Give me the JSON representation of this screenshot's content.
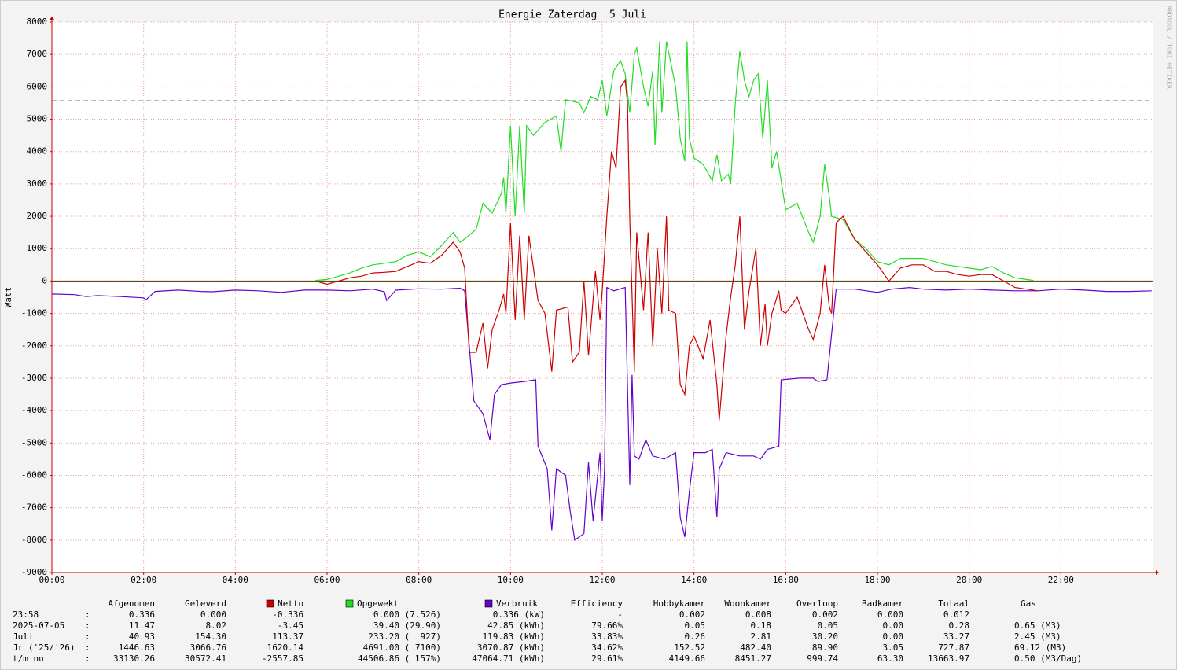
{
  "chart_data": {
    "type": "line",
    "title": "Energie Zaterdag  5 Juli",
    "y_label": "Watt",
    "watermark": "RRDTOOL / TOBI OETIKER",
    "xlim": [
      0,
      24
    ],
    "xticks": [
      {
        "value": 0,
        "label": "00:00"
      },
      {
        "value": 2,
        "label": "02:00"
      },
      {
        "value": 4,
        "label": "04:00"
      },
      {
        "value": 6,
        "label": "06:00"
      },
      {
        "value": 8,
        "label": "08:00"
      },
      {
        "value": 10,
        "label": "10:00"
      },
      {
        "value": 12,
        "label": "12:00"
      },
      {
        "value": 14,
        "label": "14:00"
      },
      {
        "value": 16,
        "label": "16:00"
      },
      {
        "value": 18,
        "label": "18:00"
      },
      {
        "value": 20,
        "label": "20:00"
      },
      {
        "value": 22,
        "label": "22:00"
      }
    ],
    "ylim": [
      -9000,
      8000
    ],
    "yticks": [
      -9000,
      -8000,
      -7000,
      -6000,
      -5000,
      -4000,
      -3000,
      -2000,
      -1000,
      0,
      1000,
      2000,
      3000,
      4000,
      5000,
      6000,
      7000,
      8000
    ],
    "grid": true,
    "reference_line": 5570,
    "series": [
      {
        "name": "Netto",
        "color": "#cc0000",
        "x": [
          5.75,
          6.0,
          6.5,
          6.75,
          7.0,
          7.25,
          7.5,
          7.75,
          8.0,
          8.25,
          8.5,
          8.75,
          8.9,
          9.0,
          9.1,
          9.25,
          9.4,
          9.5,
          9.6,
          9.75,
          9.85,
          9.9,
          10.0,
          10.1,
          10.2,
          10.3,
          10.4,
          10.6,
          10.75,
          10.9,
          11.0,
          11.25,
          11.35,
          11.5,
          11.6,
          11.7,
          11.85,
          11.95,
          12.0,
          12.1,
          12.2,
          12.3,
          12.4,
          12.5,
          12.55,
          12.6,
          12.7,
          12.75,
          12.9,
          13.0,
          13.1,
          13.2,
          13.3,
          13.4,
          13.45,
          13.6,
          13.7,
          13.8,
          13.9,
          14.0,
          14.2,
          14.35,
          14.5,
          14.55,
          14.7,
          14.8,
          14.9,
          15.0,
          15.1,
          15.2,
          15.35,
          15.45,
          15.55,
          15.6,
          15.7,
          15.85,
          15.9,
          16.0,
          16.25,
          16.5,
          16.6,
          16.75,
          16.85,
          16.95,
          17.0,
          17.1,
          17.25,
          17.5,
          17.75,
          18.0,
          18.25,
          18.5,
          18.75,
          19.0,
          19.25,
          19.5,
          19.75,
          20.0,
          20.25,
          20.5,
          20.75,
          21.0,
          21.25,
          21.5
        ],
        "values": [
          0,
          -100,
          100,
          150,
          250,
          270,
          300,
          450,
          600,
          550,
          800,
          1200,
          900,
          400,
          -2200,
          -2200,
          -1300,
          -2700,
          -1500,
          -900,
          -400,
          -1000,
          1800,
          -1200,
          1400,
          -1200,
          1400,
          -600,
          -1000,
          -2800,
          -900,
          -800,
          -2500,
          -2200,
          0,
          -2300,
          300,
          -1200,
          -300,
          2000,
          4000,
          3500,
          6000,
          6200,
          5500,
          1900,
          -2800,
          1500,
          -900,
          1500,
          -2000,
          1000,
          -1000,
          2000,
          -900,
          -1000,
          -3200,
          -3500,
          -2000,
          -1700,
          -2400,
          -1200,
          -3200,
          -4300,
          -1700,
          -500,
          500,
          2000,
          -1500,
          -300,
          1000,
          -2000,
          -700,
          -2000,
          -1000,
          -300,
          -900,
          -1000,
          -500,
          -1500,
          -1800,
          -1000,
          500,
          -800,
          -1000,
          1800,
          2000,
          1300,
          900,
          500,
          0,
          400,
          500,
          500,
          300,
          300,
          200,
          150,
          200,
          200,
          0,
          -200,
          -250,
          -300
        ]
      },
      {
        "name": "Opgewekt",
        "color": "#22dd22",
        "x": [
          5.75,
          6.0,
          6.25,
          6.5,
          6.75,
          7.0,
          7.25,
          7.5,
          7.75,
          8.0,
          8.25,
          8.5,
          8.75,
          8.9,
          9.0,
          9.25,
          9.4,
          9.6,
          9.8,
          9.85,
          9.9,
          10.0,
          10.1,
          10.2,
          10.3,
          10.35,
          10.5,
          10.75,
          11.0,
          11.1,
          11.2,
          11.5,
          11.6,
          11.75,
          11.9,
          12.0,
          12.1,
          12.25,
          12.4,
          12.5,
          12.6,
          12.7,
          12.75,
          12.9,
          13.0,
          13.1,
          13.15,
          13.25,
          13.3,
          13.4,
          13.6,
          13.7,
          13.8,
          13.85,
          13.9,
          14.0,
          14.2,
          14.4,
          14.5,
          14.6,
          14.75,
          14.8,
          14.9,
          15.0,
          15.1,
          15.2,
          15.3,
          15.4,
          15.5,
          15.6,
          15.7,
          15.8,
          15.9,
          16.0,
          16.25,
          16.5,
          16.6,
          16.75,
          16.85,
          16.95,
          17.0,
          17.25,
          17.5,
          17.75,
          18.0,
          18.25,
          18.5,
          18.75,
          19.0,
          19.25,
          19.5,
          19.75,
          20.0,
          20.25,
          20.5,
          20.75,
          21.0,
          21.25,
          21.4
        ],
        "values": [
          20,
          50,
          150,
          250,
          400,
          500,
          550,
          600,
          800,
          900,
          750,
          1100,
          1500,
          1200,
          1300,
          1600,
          2400,
          2100,
          2700,
          3200,
          2100,
          4800,
          2000,
          4800,
          2100,
          4800,
          4500,
          4900,
          5100,
          4000,
          5600,
          5500,
          5200,
          5700,
          5600,
          6200,
          5100,
          6500,
          6800,
          6400,
          5200,
          7000,
          7200,
          6000,
          5400,
          6500,
          4200,
          7400,
          5200,
          7400,
          6000,
          4400,
          3700,
          7400,
          4400,
          3800,
          3600,
          3100,
          3900,
          3100,
          3300,
          3000,
          5500,
          7100,
          6200,
          5700,
          6200,
          6400,
          4400,
          6200,
          3500,
          4000,
          3100,
          2200,
          2400,
          1500,
          1200,
          2000,
          3600,
          2600,
          2000,
          1900,
          1300,
          1000,
          600,
          500,
          700,
          700,
          700,
          600,
          500,
          450,
          400,
          350,
          450,
          250,
          100,
          50,
          20
        ]
      },
      {
        "name": "Verbruik",
        "color": "#6600cc",
        "x": [
          0,
          0.5,
          0.75,
          1.0,
          1.5,
          2.0,
          2.05,
          2.25,
          2.75,
          3.25,
          3.5,
          4.0,
          4.5,
          5.0,
          5.5,
          6.0,
          6.5,
          7.0,
          7.25,
          7.3,
          7.5,
          8.0,
          8.5,
          8.9,
          9.0,
          9.1,
          9.2,
          9.4,
          9.55,
          9.65,
          9.8,
          10.0,
          10.3,
          10.55,
          10.6,
          10.8,
          10.9,
          11.0,
          11.2,
          11.3,
          11.4,
          11.6,
          11.7,
          11.8,
          11.95,
          12.0,
          12.05,
          12.1,
          12.25,
          12.5,
          12.6,
          12.65,
          12.7,
          12.8,
          12.95,
          13.1,
          13.35,
          13.6,
          13.7,
          13.8,
          13.9,
          14.0,
          14.25,
          14.4,
          14.5,
          14.55,
          14.7,
          15.0,
          15.3,
          15.45,
          15.6,
          15.85,
          15.9,
          16.3,
          16.6,
          16.7,
          16.9,
          17.1,
          17.5,
          18.0,
          18.3,
          18.7,
          19.0,
          19.5,
          20.0,
          20.5,
          21.0,
          21.5,
          22.0,
          22.5,
          23.0,
          23.5,
          23.98
        ],
        "values": [
          -400,
          -420,
          -480,
          -450,
          -480,
          -520,
          -580,
          -320,
          -280,
          -320,
          -330,
          -280,
          -300,
          -350,
          -280,
          -280,
          -300,
          -250,
          -330,
          -600,
          -280,
          -240,
          -250,
          -220,
          -300,
          -2000,
          -3700,
          -4100,
          -4900,
          -3500,
          -3200,
          -3150,
          -3100,
          -3050,
          -5100,
          -5800,
          -7700,
          -5800,
          -6000,
          -7100,
          -8000,
          -7800,
          -5600,
          -7400,
          -5300,
          -7400,
          -5800,
          -200,
          -300,
          -200,
          -6300,
          -2900,
          -5400,
          -5500,
          -4900,
          -5400,
          -5500,
          -5300,
          -7300,
          -7900,
          -6500,
          -5300,
          -5300,
          -5200,
          -7300,
          -5800,
          -5300,
          -5400,
          -5400,
          -5500,
          -5200,
          -5100,
          -3050,
          -3000,
          -3000,
          -3100,
          -3050,
          -250,
          -250,
          -350,
          -250,
          -200,
          -250,
          -280,
          -250,
          -280,
          -300,
          -300,
          -250,
          -280,
          -320,
          -320,
          -300
        ]
      }
    ]
  },
  "table": {
    "columns": [
      "Afgenomen",
      "Geleverd",
      "Efficiency",
      "Hobbykamer",
      "Woonkamer",
      "Overloop",
      "Badkamer",
      "Totaal",
      "Gas"
    ],
    "separator": ":",
    "rows": [
      [
        "23:58",
        "0.336",
        "0.000",
        "-0.336",
        "0.000 (7.526)",
        "0.336 (kW)",
        "-",
        "0.002",
        "0.008",
        "0.002",
        "0.000",
        "0.012"
      ],
      [
        "2025-07-05",
        "11.47",
        "8.02",
        "-3.45",
        "39.40 (29.90)",
        "42.85 (kWh)",
        "79.66%",
        "0.05",
        "0.18",
        "0.05",
        "0.00",
        "0.28",
        "0.65 (M3)"
      ],
      [
        "Juli",
        "40.93",
        "154.30",
        "113.37",
        "233.20 (  927)",
        "119.83 (kWh)",
        "33.83%",
        "0.26",
        "2.81",
        "30.20",
        "0.00",
        "33.27",
        "2.45 (M3)"
      ],
      [
        "Jr ('25/'26)",
        "1446.63",
        "3066.76",
        "1620.14",
        "4691.00 ( 7100)",
        "3070.87 (kWh)",
        "34.62%",
        "152.52",
        "482.40",
        "89.90",
        "3.05",
        "727.87",
        "69.12 (M3)"
      ],
      [
        "t/m nu",
        "33130.26",
        "30572.41",
        "-2557.85",
        "44506.86 ( 157%)",
        "47064.71 (kWh)",
        "29.61%",
        "4149.66",
        "8451.27",
        "999.74",
        "63.30",
        "13663.97",
        "0.50 (M3/Dag)"
      ]
    ]
  }
}
